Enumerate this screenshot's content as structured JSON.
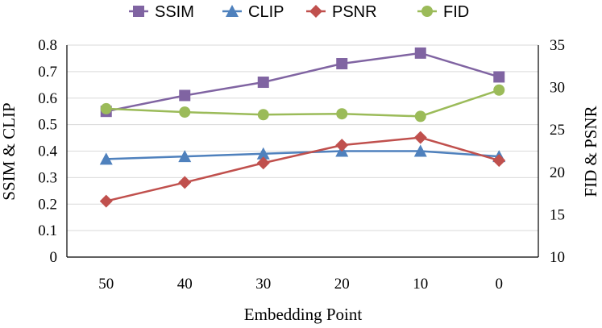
{
  "chart_data": {
    "type": "line",
    "xlabel": "Embedding Point",
    "ylabel_left": "SSIM & CLIP",
    "ylabel_right": "FID & PSNR",
    "categories": [
      "50",
      "40",
      "30",
      "20",
      "10",
      "0"
    ],
    "y_left_ticks": [
      "0",
      "0.1",
      "0.2",
      "0.3",
      "0.4",
      "0.5",
      "0.6",
      "0.7",
      "0.8"
    ],
    "y_right_ticks": [
      "10",
      "15",
      "20",
      "25",
      "30",
      "35"
    ],
    "ylim_left": [
      0,
      0.8
    ],
    "ylim_right": [
      10,
      35
    ],
    "grid": true,
    "legend_position": "top",
    "series": [
      {
        "name": "SSIM",
        "axis": "left",
        "color": "#8064A2",
        "marker": "square",
        "values": [
          0.55,
          0.61,
          0.66,
          0.73,
          0.77,
          0.68
        ]
      },
      {
        "name": "CLIP",
        "axis": "left",
        "color": "#4F81BD",
        "marker": "triangle",
        "values": [
          0.37,
          0.38,
          0.39,
          0.4,
          0.4,
          0.38
        ]
      },
      {
        "name": "PSNR",
        "axis": "right",
        "color": "#C0504D",
        "marker": "diamond",
        "values": [
          16.6,
          18.8,
          21.1,
          23.2,
          24.1,
          21.4
        ]
      },
      {
        "name": "FID",
        "axis": "right",
        "color": "#9BBB59",
        "marker": "circle",
        "values": [
          27.5,
          27.1,
          26.8,
          26.9,
          26.6,
          29.7
        ]
      }
    ]
  }
}
